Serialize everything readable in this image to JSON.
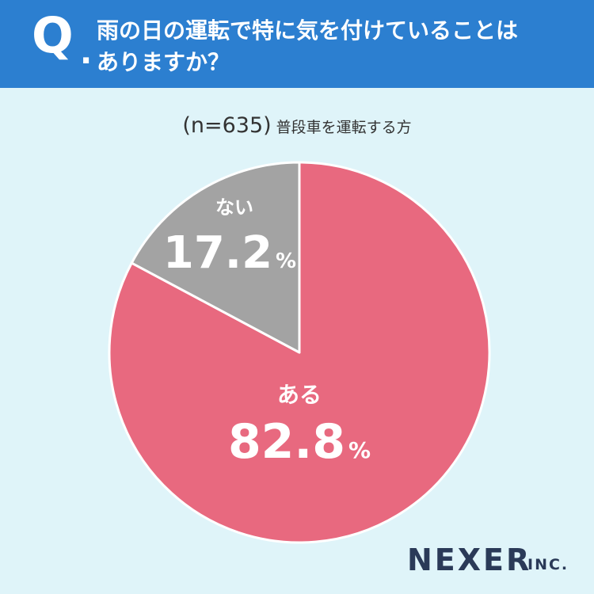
{
  "header": {
    "q_mark": "Q",
    "q_dot": ".",
    "question_line1": "雨の日の運転で特に気を付けていることは",
    "question_line2": "ありますか？"
  },
  "subtitle": {
    "sample": "(n=635)",
    "respondents": "普段車を運転する方"
  },
  "colors": {
    "header_bg": "#2c7fd0",
    "page_bg": "#dff4f9",
    "slice_yes": "#e8697f",
    "slice_no": "#a3a3a3"
  },
  "chart_data": {
    "type": "pie",
    "n": 635,
    "slices": [
      {
        "label": "ある",
        "value": 82.8,
        "value_label": "82.8",
        "unit": "%",
        "color": "#e8697f"
      },
      {
        "label": "ない",
        "value": 17.2,
        "value_label": "17.2",
        "unit": "%",
        "color": "#a3a3a3"
      }
    ],
    "start": "12 o'clock",
    "direction": "clockwise"
  },
  "logo": {
    "name": "NEXER",
    "suffix": "INC."
  }
}
